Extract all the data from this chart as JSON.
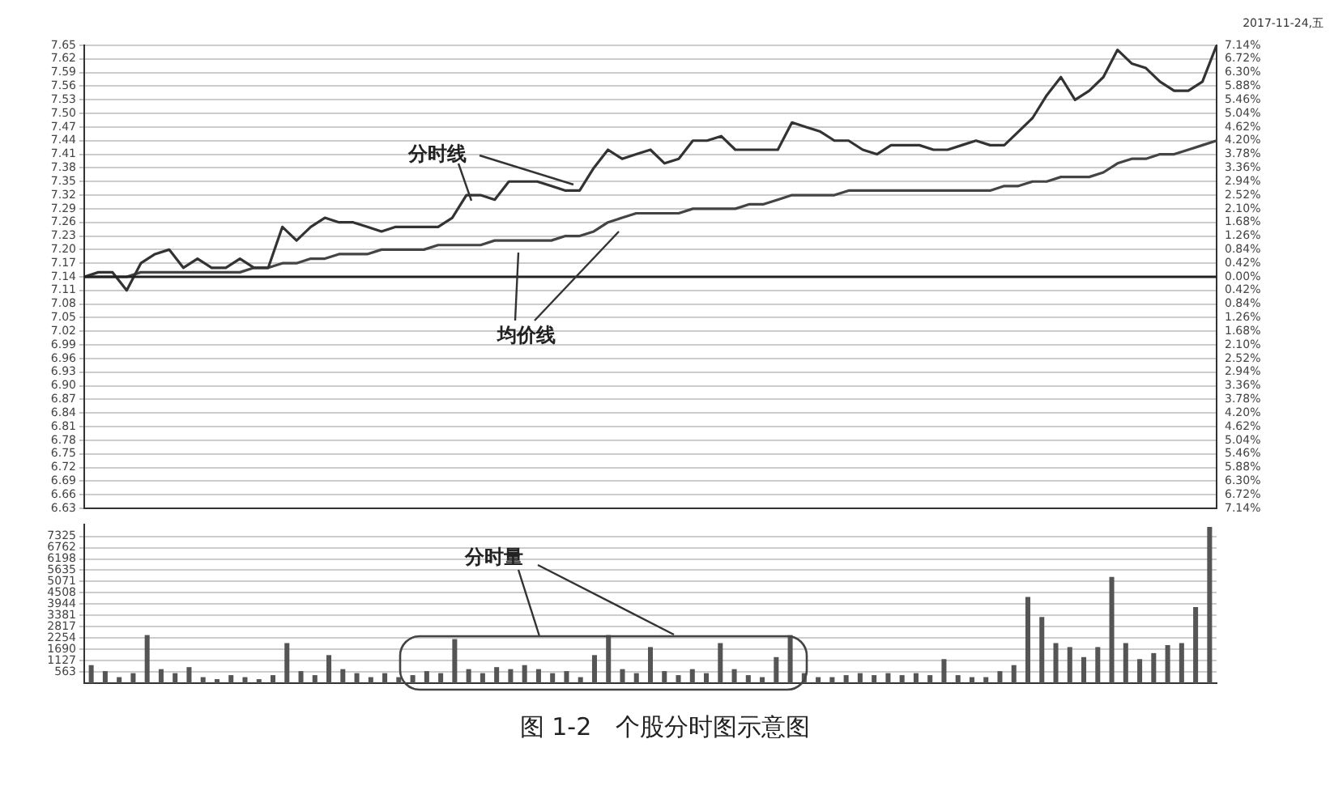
{
  "chart_data": [
    {
      "type": "line",
      "annotations": [
        "2017-11-24,五"
      ],
      "categories": [
        null,
        null,
        null,
        null,
        null,
        null,
        null,
        null,
        null,
        null,
        null,
        null,
        null,
        null,
        null,
        null,
        null,
        null,
        null,
        null,
        null,
        null,
        null,
        null,
        null,
        null,
        null,
        null,
        null,
        null,
        null,
        null,
        null,
        null,
        null,
        null,
        null,
        null,
        null,
        null,
        null,
        null,
        null,
        null,
        null,
        null,
        null,
        null,
        null,
        null,
        null,
        null,
        null,
        null,
        null,
        null,
        null,
        null,
        null,
        null,
        null,
        null,
        null,
        null,
        null,
        null,
        null,
        null,
        null,
        null,
        null,
        null,
        null,
        null,
        null,
        null,
        null,
        null,
        null,
        null,
        null
      ],
      "series": [
        {
          "name": "分时线",
          "color": "#333333",
          "values": [
            7.14,
            7.15,
            7.15,
            7.11,
            7.17,
            7.19,
            7.2,
            7.16,
            7.18,
            7.16,
            7.16,
            7.18,
            7.16,
            7.16,
            7.25,
            7.22,
            7.25,
            7.27,
            7.26,
            7.26,
            7.25,
            7.24,
            7.25,
            7.25,
            7.25,
            7.25,
            7.27,
            7.32,
            7.32,
            7.31,
            7.35,
            7.35,
            7.35,
            7.34,
            7.33,
            7.33,
            7.38,
            7.42,
            7.4,
            7.41,
            7.42,
            7.39,
            7.4,
            7.44,
            7.44,
            7.45,
            7.42,
            7.42,
            7.42,
            7.42,
            7.48,
            7.47,
            7.46,
            7.44,
            7.44,
            7.42,
            7.41,
            7.43,
            7.43,
            7.43,
            7.42,
            7.42,
            7.43,
            7.44,
            7.43,
            7.43,
            7.46,
            7.49,
            7.54,
            7.58,
            7.53,
            7.55,
            7.58,
            7.64,
            7.61,
            7.6,
            7.57,
            7.55,
            7.55,
            7.57,
            7.65
          ]
        },
        {
          "name": "均价线",
          "color": "#444444",
          "values": [
            7.14,
            7.14,
            7.14,
            7.14,
            7.15,
            7.15,
            7.15,
            7.15,
            7.15,
            7.15,
            7.15,
            7.15,
            7.16,
            7.16,
            7.17,
            7.17,
            7.18,
            7.18,
            7.19,
            7.19,
            7.19,
            7.2,
            7.2,
            7.2,
            7.2,
            7.21,
            7.21,
            7.21,
            7.21,
            7.22,
            7.22,
            7.22,
            7.22,
            7.22,
            7.23,
            7.23,
            7.24,
            7.26,
            7.27,
            7.28,
            7.28,
            7.28,
            7.28,
            7.29,
            7.29,
            7.29,
            7.29,
            7.3,
            7.3,
            7.31,
            7.32,
            7.32,
            7.32,
            7.32,
            7.33,
            7.33,
            7.33,
            7.33,
            7.33,
            7.33,
            7.33,
            7.33,
            7.33,
            7.33,
            7.33,
            7.34,
            7.34,
            7.35,
            7.35,
            7.36,
            7.36,
            7.36,
            7.37,
            7.39,
            7.4,
            7.4,
            7.41,
            7.41,
            7.42,
            7.43,
            7.44
          ]
        }
      ],
      "ylim": [
        6.63,
        7.65
      ],
      "yticks": [
        6.63,
        6.66,
        6.69,
        6.72,
        6.75,
        6.78,
        6.81,
        6.84,
        6.87,
        {
          "value": 6.9,
          "label": "6.90"
        },
        6.93,
        6.96,
        6.99,
        7.02,
        7.05,
        7.08,
        7.11,
        7.14,
        7.17,
        {
          "value": 7.2,
          "label": "7.20"
        },
        7.23,
        7.26,
        7.29,
        7.32,
        7.35,
        7.38,
        7.41,
        7.44,
        7.47,
        {
          "value": 7.5,
          "label": "7.50"
        },
        7.53,
        7.56,
        7.59,
        7.62,
        7.65
      ],
      "y2lim": [
        -7.14,
        7.14
      ],
      "y2ticks": [
        {
          "value": -7.14,
          "label": "7.14%"
        },
        {
          "value": -6.72,
          "label": "6.72%"
        },
        {
          "value": -6.3,
          "label": "6.30%"
        },
        {
          "value": -5.88,
          "label": "5.88%"
        },
        {
          "value": -5.46,
          "label": "5.46%"
        },
        {
          "value": -5.04,
          "label": "5.04%"
        },
        {
          "value": -4.62,
          "label": "4.62%"
        },
        {
          "value": -4.2,
          "label": "4.20%"
        },
        {
          "value": -3.78,
          "label": "3.78%"
        },
        {
          "value": -3.36,
          "label": "3.36%"
        },
        {
          "value": -2.94,
          "label": "2.94%"
        },
        {
          "value": -2.52,
          "label": "2.52%"
        },
        {
          "value": -2.1,
          "label": "2.10%"
        },
        {
          "value": -1.68,
          "label": "1.68%"
        },
        {
          "value": -1.26,
          "label": "1.26%"
        },
        {
          "value": -0.84,
          "label": "0.84%"
        },
        {
          "value": -0.42,
          "label": "0.42%"
        },
        {
          "value": 0,
          "label": "0.00%"
        },
        {
          "value": 0.42,
          "label": "0.42%"
        },
        {
          "value": 0.84,
          "label": "0.84%"
        },
        {
          "value": 1.26,
          "label": "1.26%"
        },
        {
          "value": 1.68,
          "label": "1.68%"
        },
        {
          "value": 2.1,
          "label": "2.10%"
        },
        {
          "value": 2.52,
          "label": "2.52%"
        },
        {
          "value": 2.94,
          "label": "2.94%"
        },
        {
          "value": 3.36,
          "label": "3.36%"
        },
        {
          "value": 3.78,
          "label": "3.78%"
        },
        {
          "value": 4.2,
          "label": "4.20%"
        },
        {
          "value": 4.62,
          "label": "4.62%"
        },
        {
          "value": 5.04,
          "label": "5.04%"
        },
        {
          "value": 5.46,
          "label": "5.46%"
        },
        {
          "value": 5.88,
          "label": "5.88%"
        },
        {
          "value": 6.3,
          "label": "6.30%"
        },
        {
          "value": 6.72,
          "label": "6.72%"
        },
        {
          "value": 7.14,
          "label": "7.14%"
        }
      ],
      "ref_lines": [
        {
          "axis": "y",
          "value": 7.14
        }
      ],
      "grid": "y",
      "legend": false,
      "marker": "none",
      "line_style": "solid"
    },
    {
      "type": "bar",
      "annotations": [
        "图 1-2　个股分时图示意图"
      ],
      "categories": [
        null,
        null,
        null,
        null,
        null,
        null,
        null,
        null,
        null,
        null,
        null,
        null,
        null,
        null,
        null,
        null,
        null,
        null,
        null,
        null,
        null,
        null,
        null,
        null,
        null,
        null,
        null,
        null,
        null,
        null,
        null,
        null,
        null,
        null,
        null,
        null,
        null,
        null,
        null,
        null,
        null,
        null,
        null,
        null,
        null,
        null,
        null,
        null,
        null,
        null,
        null,
        null,
        null,
        null,
        null,
        null,
        null,
        null,
        null,
        null,
        null,
        null,
        null,
        null,
        null,
        null,
        null,
        null,
        null,
        null,
        null,
        null,
        null,
        null,
        null,
        null,
        null,
        null,
        null,
        null,
        null
      ],
      "series": [
        {
          "name": "分时量",
          "color": "#555555",
          "values": [
            900,
            600,
            300,
            500,
            2400,
            700,
            500,
            800,
            300,
            200,
            400,
            300,
            200,
            400,
            2000,
            600,
            400,
            1400,
            700,
            500,
            300,
            500,
            300,
            400,
            600,
            500,
            2200,
            700,
            500,
            800,
            700,
            900,
            700,
            500,
            600,
            300,
            1400,
            2400,
            700,
            500,
            1800,
            600,
            400,
            700,
            500,
            2000,
            700,
            400,
            300,
            1300,
            2400,
            500,
            300,
            300,
            400,
            500,
            400,
            500,
            400,
            500,
            400,
            1200,
            400,
            300,
            300,
            600,
            900,
            4300,
            3300,
            2000,
            1800,
            1300,
            1800,
            5300,
            2000,
            1200,
            1500,
            1900,
            2000,
            3800,
            7800
          ]
        }
      ],
      "ylim": [
        0,
        7900
      ],
      "yticks": [
        563,
        1127,
        1690,
        2254,
        2817,
        3381,
        3944,
        4508,
        5071,
        5635,
        6198,
        6762,
        7325
      ],
      "grid": "y",
      "legend": false
    }
  ]
}
